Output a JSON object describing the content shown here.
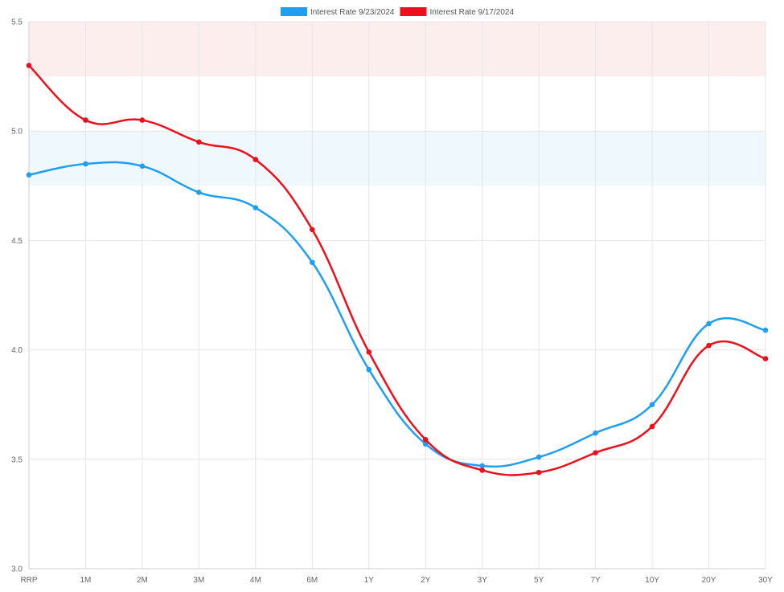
{
  "chart_data": {
    "type": "line",
    "title": "",
    "xlabel": "",
    "ylabel": "",
    "categories": [
      "RRP",
      "1M",
      "2M",
      "3M",
      "4M",
      "6M",
      "1Y",
      "2Y",
      "3Y",
      "5Y",
      "7Y",
      "10Y",
      "20Y",
      "30Y"
    ],
    "ylim": [
      3.0,
      5.5
    ],
    "yticks": [
      "3.0",
      "3.5",
      "4.0",
      "4.5",
      "5.0",
      "5.5"
    ],
    "ytick_values": [
      3.0,
      3.5,
      4.0,
      4.5,
      5.0,
      5.5
    ],
    "grid": true,
    "legend": "top-center",
    "bands": [
      {
        "from": 5.25,
        "to": 5.5,
        "color": "#fdeeee"
      },
      {
        "from": 4.75,
        "to": 5.0,
        "color": "#eef8fd"
      }
    ],
    "series": [
      {
        "name": "Interest Rate 9/23/2024",
        "color": "#1e9ff2",
        "values": [
          4.8,
          4.85,
          4.84,
          4.72,
          4.65,
          4.4,
          3.91,
          3.57,
          3.47,
          3.51,
          3.62,
          3.75,
          4.12,
          4.09
        ]
      },
      {
        "name": "Interest Rate 9/17/2024",
        "color": "#ee0f1d",
        "values": [
          5.3,
          5.05,
          5.05,
          4.95,
          4.87,
          4.55,
          3.99,
          3.59,
          3.45,
          3.44,
          3.53,
          3.65,
          4.02,
          3.96
        ]
      }
    ]
  }
}
